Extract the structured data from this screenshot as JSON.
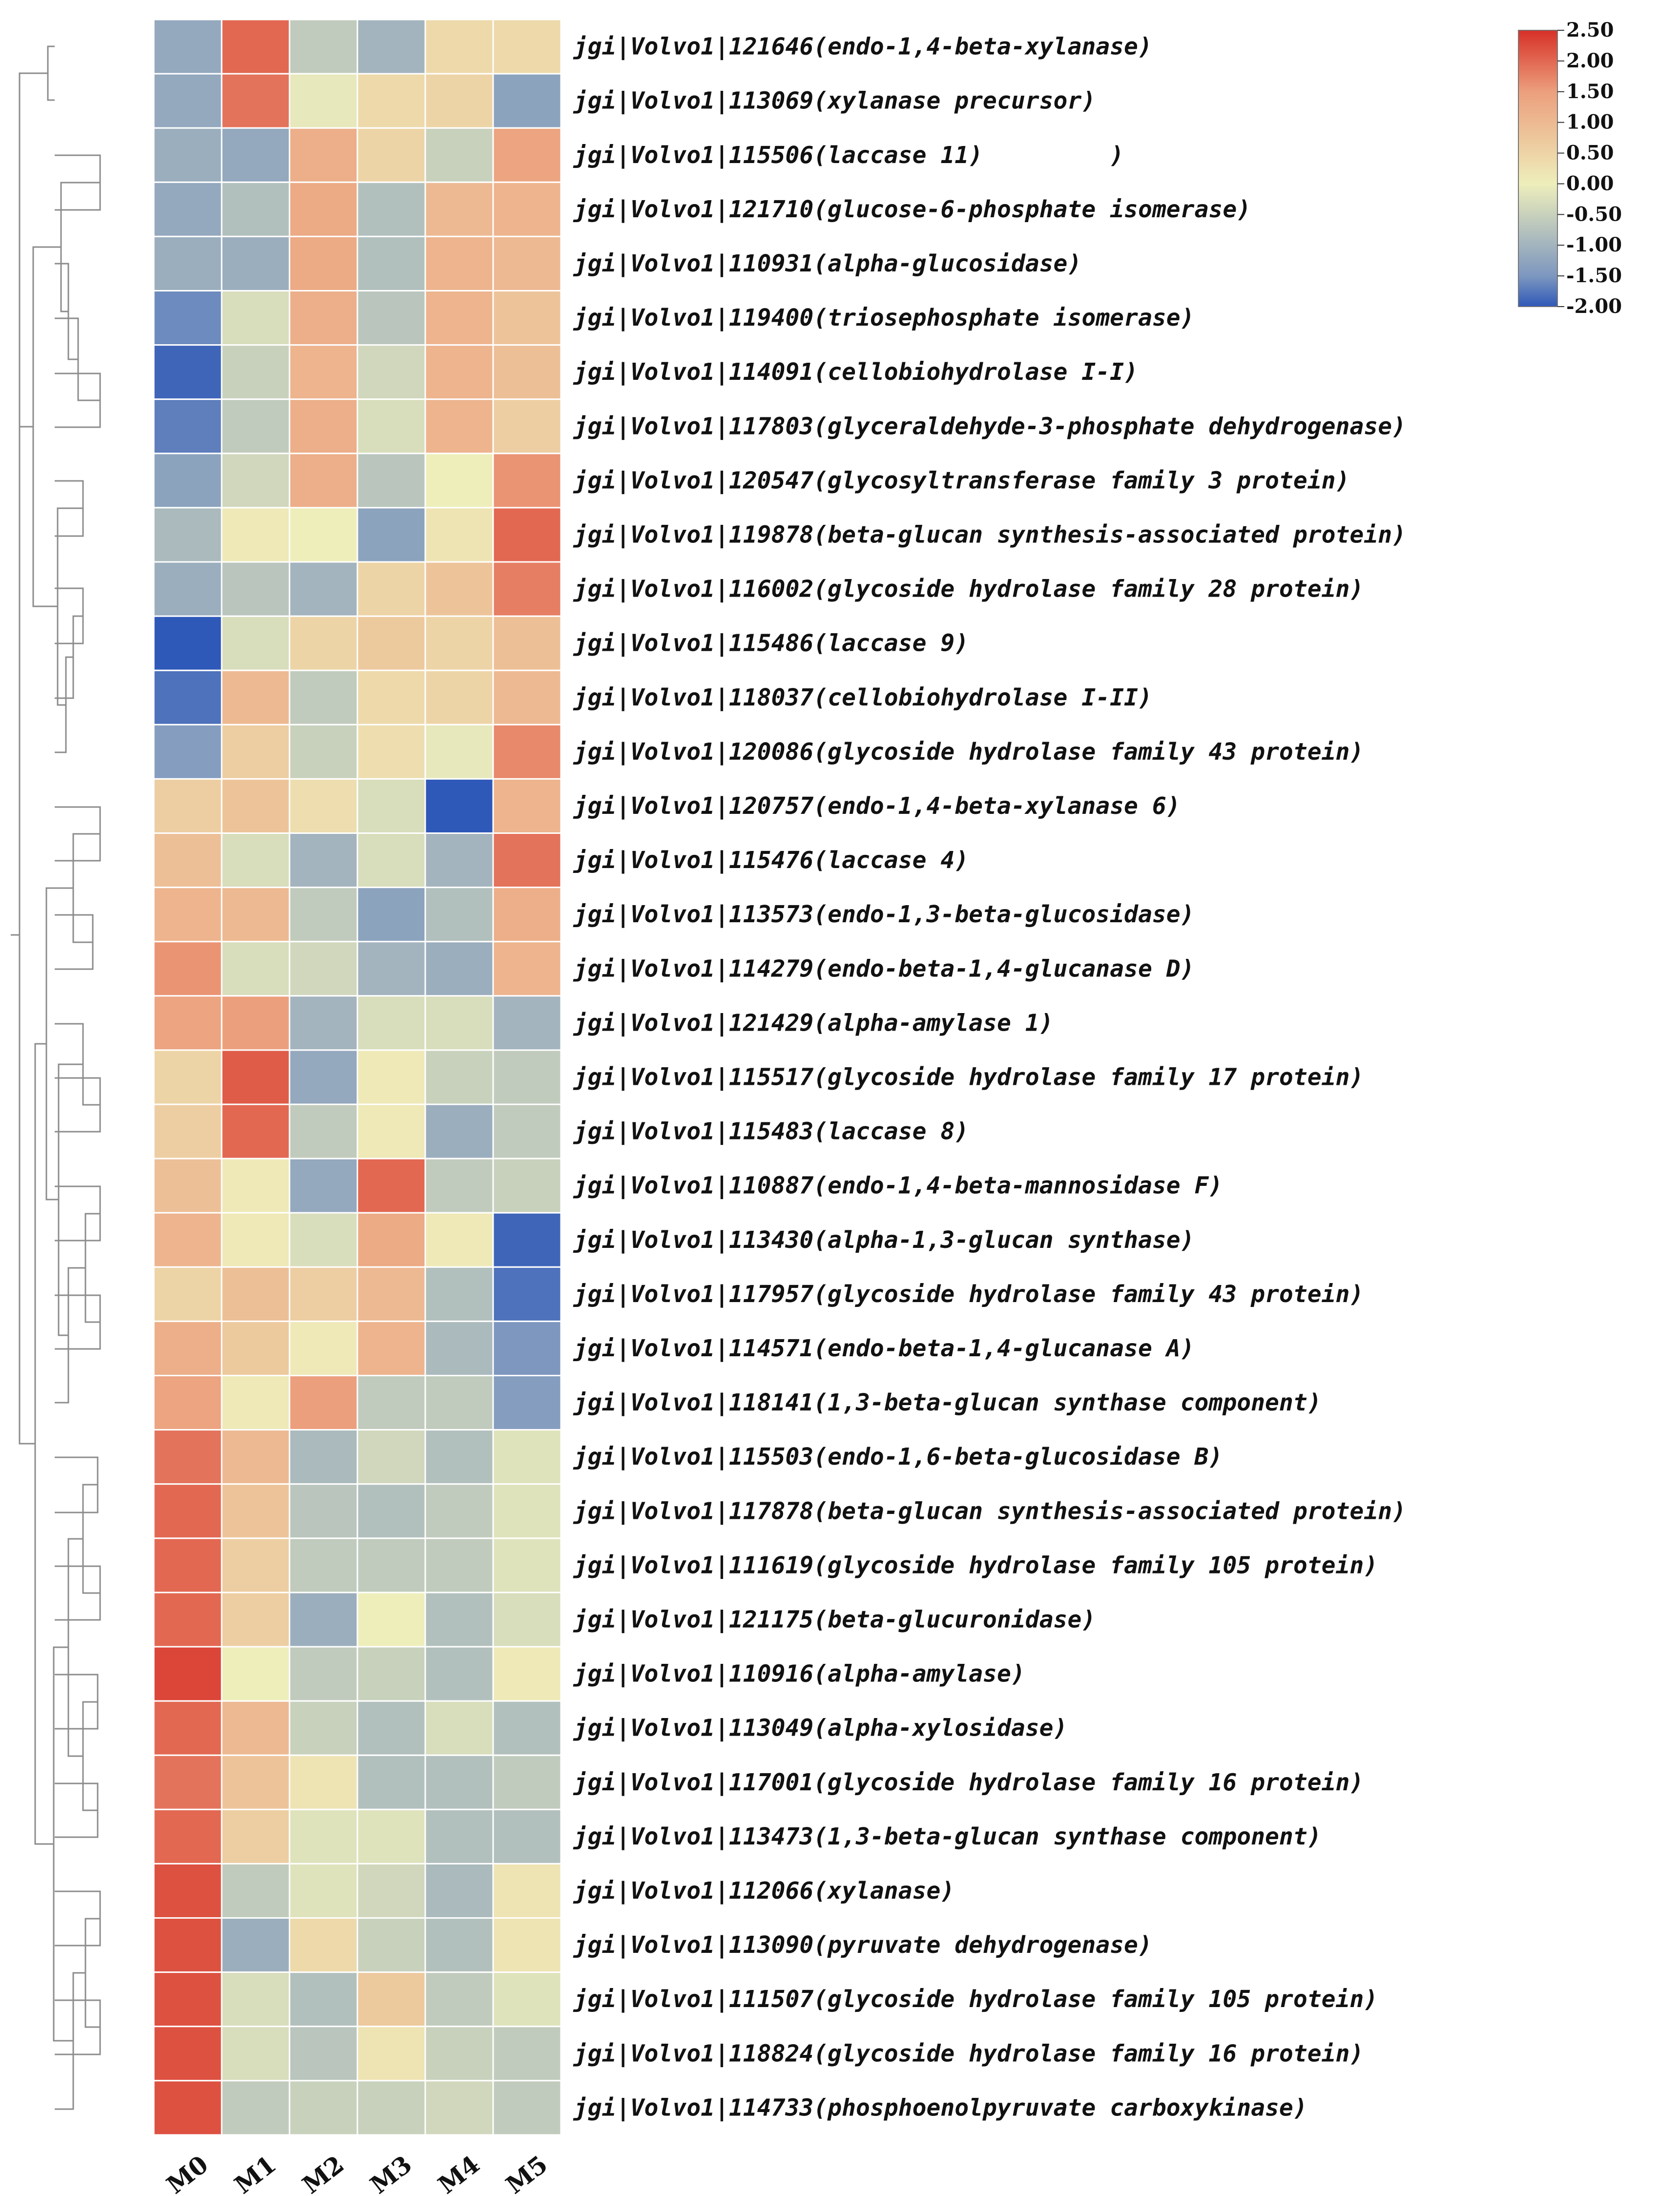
{
  "chart_data": {
    "type": "heatmap",
    "columns": [
      "M0",
      "M1",
      "M2",
      "M3",
      "M4",
      "M5"
    ],
    "rows": [
      {
        "label": "jgi|Volvo1|121646(endo-1,4-beta-xylanase)",
        "values": [
          -1.2,
          2.0,
          -0.6,
          -1.0,
          0.4,
          0.4
        ]
      },
      {
        "label": "jgi|Volvo1|113069(xylanase precursor)",
        "values": [
          -1.2,
          1.9,
          -0.1,
          0.4,
          0.5,
          -1.3
        ]
      },
      {
        "label": "jgi|Volvo1|115506(laccase 11)         )",
        "values": [
          -1.1,
          -1.2,
          1.2,
          0.5,
          -0.5,
          1.4
        ]
      },
      {
        "label": "jgi|Volvo1|121710(glucose-6-phosphate isomerase)",
        "values": [
          -1.2,
          -0.8,
          1.3,
          -0.8,
          1.0,
          1.1
        ]
      },
      {
        "label": "jgi|Volvo1|110931(alpha-glucosidase)",
        "values": [
          -1.1,
          -1.1,
          1.3,
          -0.8,
          1.1,
          1.0
        ]
      },
      {
        "label": "jgi|Volvo1|119400(triosephosphate isomerase)",
        "values": [
          -1.6,
          -0.3,
          1.2,
          -0.7,
          1.1,
          0.8
        ]
      },
      {
        "label": "jgi|Volvo1|114091(cellobiohydrolase I-I)",
        "values": [
          -1.9,
          -0.5,
          1.1,
          -0.4,
          1.1,
          0.9
        ]
      },
      {
        "label": "jgi|Volvo1|117803(glyceraldehyde-3-phosphate dehydrogenase)",
        "values": [
          -1.7,
          -0.6,
          1.2,
          -0.3,
          1.1,
          0.6
        ]
      },
      {
        "label": "jgi|Volvo1|120547(glycosyltransferase family 3 protein)",
        "values": [
          -1.3,
          -0.4,
          1.2,
          -0.7,
          0.0,
          1.6
        ]
      },
      {
        "label": "jgi|Volvo1|119878(beta-glucan synthesis-associated protein)",
        "values": [
          -0.9,
          0.1,
          0.0,
          -1.3,
          0.2,
          2.0
        ]
      },
      {
        "label": "jgi|Volvo1|116002(glycoside hydrolase family 28 protein)",
        "values": [
          -1.1,
          -0.7,
          -1.0,
          0.5,
          0.8,
          1.8
        ]
      },
      {
        "label": "jgi|Volvo1|115486(laccase 9)",
        "values": [
          -2.0,
          -0.3,
          0.5,
          0.7,
          0.5,
          0.9
        ]
      },
      {
        "label": "jgi|Volvo1|118037(cellobiohydrolase I-II)",
        "values": [
          -1.8,
          1.0,
          -0.6,
          0.4,
          0.5,
          1.0
        ]
      },
      {
        "label": "jgi|Volvo1|120086(glycoside hydrolase family 43 protein)",
        "values": [
          -1.4,
          0.6,
          -0.5,
          0.3,
          -0.1,
          1.7
        ]
      },
      {
        "label": "jgi|Volvo1|120757(endo-1,4-beta-xylanase 6)",
        "values": [
          0.6,
          0.8,
          0.3,
          -0.3,
          -2.0,
          1.1
        ]
      },
      {
        "label": "jgi|Volvo1|115476(laccase 4)",
        "values": [
          0.9,
          -0.3,
          -1.0,
          -0.3,
          -1.0,
          1.9
        ]
      },
      {
        "label": "jgi|Volvo1|113573(endo-1,3-beta-glucosidase)",
        "values": [
          1.1,
          1.0,
          -0.6,
          -1.3,
          -0.8,
          1.2
        ]
      },
      {
        "label": "jgi|Volvo1|114279(endo-beta-1,4-glucanase D)",
        "values": [
          1.6,
          -0.3,
          -0.4,
          -1.0,
          -1.1,
          1.1
        ]
      },
      {
        "label": "jgi|Volvo1|121429(alpha-amylase 1)",
        "values": [
          1.4,
          1.5,
          -1.0,
          -0.3,
          -0.3,
          -1.0
        ]
      },
      {
        "label": "jgi|Volvo1|115517(glycoside hydrolase family 17 protein)",
        "values": [
          0.5,
          2.1,
          -1.2,
          0.1,
          -0.5,
          -0.6
        ]
      },
      {
        "label": "jgi|Volvo1|115483(laccase 8)",
        "values": [
          0.6,
          2.0,
          -0.6,
          0.1,
          -1.1,
          -0.6
        ]
      },
      {
        "label": "jgi|Volvo1|110887(endo-1,4-beta-mannosidase F)",
        "values": [
          0.9,
          0.1,
          -1.2,
          2.0,
          -0.6,
          -0.5
        ]
      },
      {
        "label": "jgi|Volvo1|113430(alpha-1,3-glucan synthase)",
        "values": [
          1.1,
          0.1,
          -0.3,
          1.3,
          0.1,
          -1.9
        ]
      },
      {
        "label": "jgi|Volvo1|117957(glycoside hydrolase family 43 protein)",
        "values": [
          0.5,
          0.9,
          0.6,
          1.0,
          -0.8,
          -1.8
        ]
      },
      {
        "label": "jgi|Volvo1|114571(endo-beta-1,4-glucanase A)",
        "values": [
          1.2,
          0.7,
          0.1,
          1.1,
          -0.9,
          -1.5
        ]
      },
      {
        "label": "jgi|Volvo1|118141(1,3-beta-glucan synthase component)",
        "values": [
          1.4,
          0.1,
          1.5,
          -0.6,
          -0.6,
          -1.4
        ]
      },
      {
        "label": "jgi|Volvo1|115503(endo-1,6-beta-glucosidase B)",
        "values": [
          1.9,
          1.0,
          -0.9,
          -0.4,
          -0.8,
          -0.2
        ]
      },
      {
        "label": "jgi|Volvo1|117878(beta-glucan synthesis-associated protein)",
        "values": [
          2.0,
          0.8,
          -0.7,
          -0.8,
          -0.6,
          -0.2
        ]
      },
      {
        "label": "jgi|Volvo1|111619(glycoside hydrolase family 105 protein)",
        "values": [
          2.0,
          0.6,
          -0.6,
          -0.6,
          -0.6,
          -0.2
        ]
      },
      {
        "label": "jgi|Volvo1|121175(beta-glucuronidase)",
        "values": [
          2.0,
          0.6,
          -1.1,
          0.0,
          -0.8,
          -0.3
        ]
      },
      {
        "label": "jgi|Volvo1|110916(alpha-amylase)",
        "values": [
          2.3,
          0.0,
          -0.6,
          -0.5,
          -0.8,
          0.1
        ]
      },
      {
        "label": "jgi|Volvo1|113049(alpha-xylosidase)",
        "values": [
          2.0,
          1.0,
          -0.5,
          -0.8,
          -0.3,
          -0.8
        ]
      },
      {
        "label": "jgi|Volvo1|117001(glycoside hydrolase family 16 protein)",
        "values": [
          1.9,
          0.8,
          0.2,
          -0.8,
          -0.8,
          -0.6
        ]
      },
      {
        "label": "jgi|Volvo1|113473(1,3-beta-glucan synthase component)",
        "values": [
          2.0,
          0.6,
          -0.2,
          -0.2,
          -0.8,
          -0.8
        ]
      },
      {
        "label": "jgi|Volvo1|112066(xylanase)",
        "values": [
          2.2,
          -0.6,
          -0.2,
          -0.4,
          -0.9,
          0.2
        ]
      },
      {
        "label": "jgi|Volvo1|113090(pyruvate dehydrogenase)",
        "values": [
          2.2,
          -1.1,
          0.4,
          -0.5,
          -0.8,
          0.2
        ]
      },
      {
        "label": "jgi|Volvo1|111507(glycoside hydrolase family 105 protein)",
        "values": [
          2.2,
          -0.3,
          -0.8,
          0.7,
          -0.6,
          -0.2
        ]
      },
      {
        "label": "jgi|Volvo1|118824(glycoside hydrolase family 16 protein)",
        "values": [
          2.2,
          -0.3,
          -0.7,
          0.2,
          -0.5,
          -0.6
        ]
      },
      {
        "label": "jgi|Volvo1|114733(phosphoenolpyruvate carboxykinase)",
        "values": [
          2.2,
          -0.6,
          -0.5,
          -0.5,
          -0.4,
          -0.6
        ]
      }
    ],
    "color_scale": {
      "min": -2.0,
      "max": 2.5,
      "colors": [
        "#2f59b8",
        "#7d97bf",
        "#eeeebb",
        "#ec9f7d",
        "#d73027"
      ],
      "ticks": [
        "2.50",
        "2.00",
        "1.50",
        "1.00",
        "0.50",
        "0.00",
        "-0.50",
        "-1.00",
        "-1.50",
        "-2.00"
      ]
    },
    "row_dendrogram": true,
    "title": "",
    "xlabel": "",
    "ylabel": ""
  }
}
